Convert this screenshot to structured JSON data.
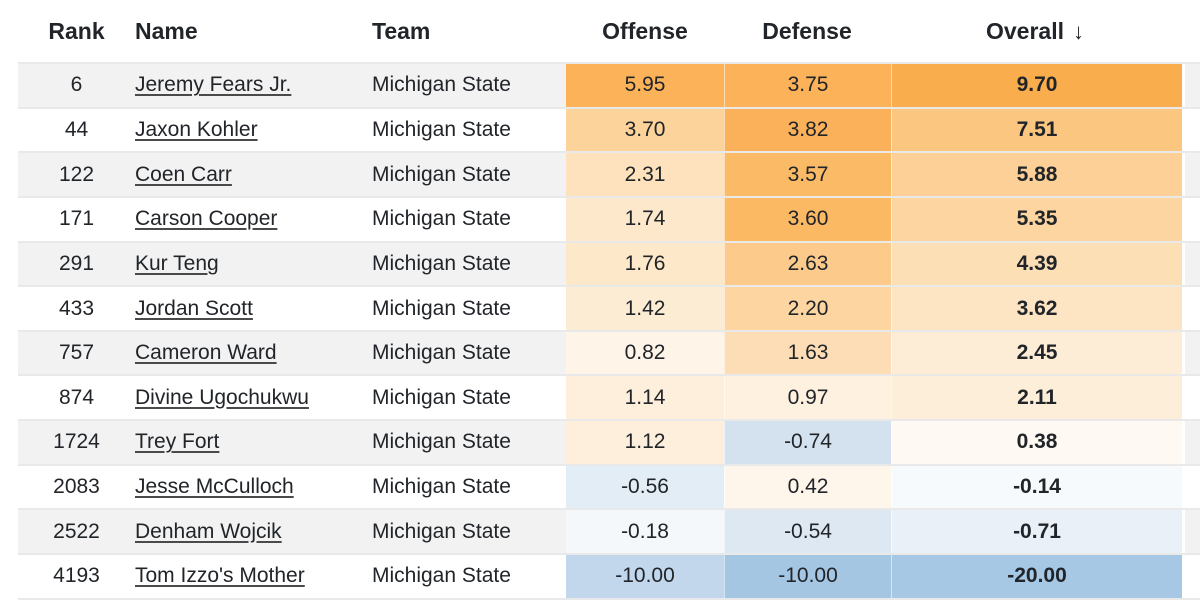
{
  "theme": {
    "background": "#ffffff",
    "zebra_odd_row": "#f2f2f2",
    "zebra_even_row": "#ffffff",
    "row_border": "#e9e9e9",
    "header_text": "#212529",
    "body_text": "#212529",
    "heatmap_positive_strong": "#fbb259",
    "heatmap_negative_strong": "#a4c6e3"
  },
  "table": {
    "columns": [
      {
        "key": "rank",
        "label": "Rank"
      },
      {
        "key": "name",
        "label": "Name"
      },
      {
        "key": "team",
        "label": "Team"
      },
      {
        "key": "offense",
        "label": "Offense"
      },
      {
        "key": "defense",
        "label": "Defense"
      },
      {
        "key": "overall",
        "label": "Overall",
        "sorted": "desc"
      }
    ],
    "sort_arrow": "↓",
    "rows": [
      {
        "rank": "6",
        "name": "Jeremy Fears Jr.",
        "team": "Michigan State",
        "offense": "5.95",
        "defense": "3.75",
        "overall": "9.70",
        "offense_bg": "#fbb259",
        "defense_bg": "#fbb259",
        "overall_bg": "#faad4d"
      },
      {
        "rank": "44",
        "name": "Jaxon Kohler",
        "team": "Michigan State",
        "offense": "3.70",
        "defense": "3.82",
        "overall": "7.51",
        "offense_bg": "#fcd39a",
        "defense_bg": "#fbb159",
        "overall_bg": "#fbc67f"
      },
      {
        "rank": "122",
        "name": "Coen Carr",
        "team": "Michigan State",
        "offense": "2.31",
        "defense": "3.57",
        "overall": "5.88",
        "offense_bg": "#fde2bd",
        "defense_bg": "#fbba66",
        "overall_bg": "#fcd096"
      },
      {
        "rank": "171",
        "name": "Carson Cooper",
        "team": "Michigan State",
        "offense": "1.74",
        "defense": "3.60",
        "overall": "5.35",
        "offense_bg": "#fde8cb",
        "defense_bg": "#fbb964",
        "overall_bg": "#fcd5a1"
      },
      {
        "rank": "291",
        "name": "Kur Teng",
        "team": "Michigan State",
        "offense": "1.76",
        "defense": "2.63",
        "overall": "4.39",
        "offense_bg": "#fde8ca",
        "defense_bg": "#fccb8b",
        "overall_bg": "#fddfb6"
      },
      {
        "rank": "433",
        "name": "Jordan Scott",
        "team": "Michigan State",
        "offense": "1.42",
        "defense": "2.20",
        "overall": "3.62",
        "offense_bg": "#fdecd4",
        "defense_bg": "#fcd5a0",
        "overall_bg": "#fde4c2"
      },
      {
        "rank": "757",
        "name": "Cameron Ward",
        "team": "Michigan State",
        "offense": "0.82",
        "defense": "1.63",
        "overall": "2.45",
        "offense_bg": "#fef4e7",
        "defense_bg": "#fdddb5",
        "overall_bg": "#fdecd6"
      },
      {
        "rank": "874",
        "name": "Divine Ugochukwu",
        "team": "Michigan State",
        "offense": "1.14",
        "defense": "0.97",
        "overall": "2.11",
        "offense_bg": "#fdefdb",
        "defense_bg": "#fef1e0",
        "overall_bg": "#fdeed9"
      },
      {
        "rank": "1724",
        "name": "Trey Fort",
        "team": "Michigan State",
        "offense": "1.12",
        "defense": "-0.74",
        "overall": "0.38",
        "offense_bg": "#fdefdc",
        "defense_bg": "#d4e2f0",
        "overall_bg": "#fefaf3"
      },
      {
        "rank": "2083",
        "name": "Jesse McCulloch",
        "team": "Michigan State",
        "offense": "-0.56",
        "defense": "0.42",
        "overall": "-0.14",
        "offense_bg": "#e3edf6",
        "defense_bg": "#fef5eb",
        "overall_bg": "#f7fafc"
      },
      {
        "rank": "2522",
        "name": "Denham Wojcik",
        "team": "Michigan State",
        "offense": "-0.18",
        "defense": "-0.54",
        "overall": "-0.71",
        "offense_bg": "#f4f8fb",
        "defense_bg": "#dde8f3",
        "overall_bg": "#e9f0f8"
      },
      {
        "rank": "4193",
        "name": "Tom Izzo's Mother",
        "team": "Michigan State",
        "offense": "-10.00",
        "defense": "-10.00",
        "overall": "-20.00",
        "offense_bg": "#c2d7eb",
        "defense_bg": "#a4c6e3",
        "overall_bg": "#a6c8e4"
      }
    ]
  }
}
